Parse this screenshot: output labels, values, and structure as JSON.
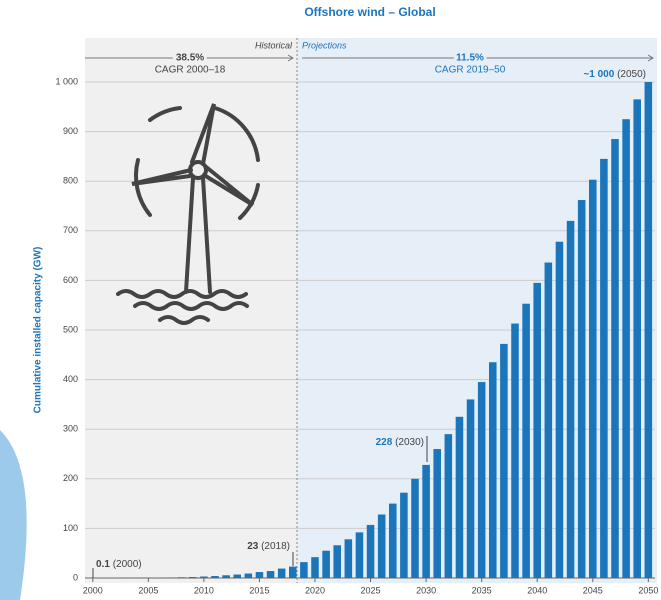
{
  "chart_data": {
    "type": "bar",
    "title": "Offshore wind – Global",
    "y_label": "Cumulative installed capacity (GW)",
    "x": [
      2000,
      2001,
      2002,
      2003,
      2004,
      2005,
      2006,
      2007,
      2008,
      2009,
      2010,
      2011,
      2012,
      2013,
      2014,
      2015,
      2016,
      2017,
      2018,
      2019,
      2020,
      2021,
      2022,
      2023,
      2024,
      2025,
      2026,
      2027,
      2028,
      2029,
      2030,
      2031,
      2032,
      2033,
      2034,
      2035,
      2036,
      2037,
      2038,
      2039,
      2040,
      2041,
      2042,
      2043,
      2044,
      2045,
      2046,
      2047,
      2048,
      2049,
      2050
    ],
    "values": [
      0.1,
      0.1,
      0.2,
      0.5,
      0.6,
      0.7,
      0.9,
      1.1,
      1.5,
      2,
      3,
      4,
      5.5,
      7,
      9,
      12,
      14,
      19,
      23,
      32,
      42,
      55,
      66,
      78,
      92,
      107,
      128,
      150,
      172,
      200,
      228,
      260,
      290,
      325,
      360,
      395,
      435,
      472,
      513,
      553,
      595,
      636,
      678,
      720,
      762,
      803,
      845,
      885,
      925,
      965,
      1000
    ],
    "color": "#1b75bb",
    "xlim": [
      1999.3,
      2050.6
    ],
    "xticks": [
      2000,
      2005,
      2010,
      2015,
      2020,
      2025,
      2030,
      2035,
      2040,
      2045,
      2050
    ],
    "ylim": [
      0,
      1000
    ],
    "yticks": [
      0,
      100,
      200,
      300,
      400,
      500,
      600,
      700,
      800,
      900,
      {
        "value": 1000,
        "label": "1 000"
      }
    ],
    "grid": true,
    "periods": [
      "Historical",
      "Projections"
    ],
    "cagr": [
      {
        "value": "38.5%",
        "label": "CAGR 2000–18"
      },
      {
        "value": "11.5%",
        "label": "CAGR 2019–50"
      }
    ],
    "annotations": [
      {
        "value": "0.1",
        "year": "(2000)"
      },
      {
        "value": "23",
        "year": "(2018)"
      },
      {
        "value": "228",
        "year": "(2030)"
      },
      {
        "value": "~1 000",
        "year": "(2050)"
      }
    ]
  }
}
